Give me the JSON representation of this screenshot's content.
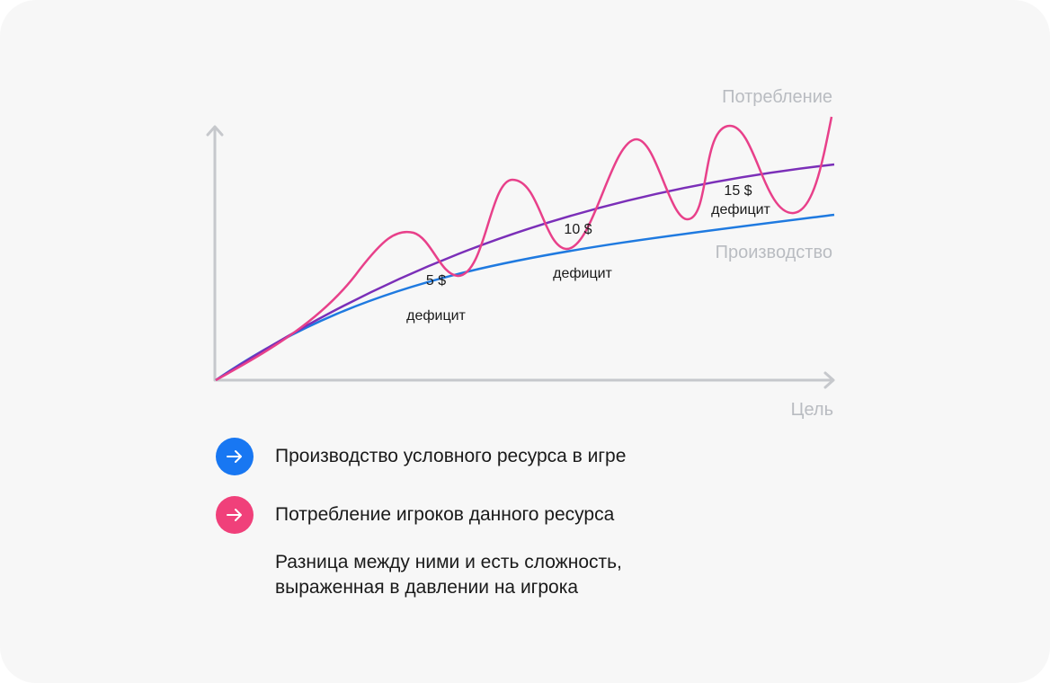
{
  "diagram": {
    "consumption_label": "Потребление",
    "production_label": "Производство",
    "x_axis_label": "Цель",
    "deficits": [
      {
        "amount": "5 $",
        "label": "дефицит"
      },
      {
        "amount": "10 $",
        "label": "дефицит"
      },
      {
        "amount": "15 $",
        "label": "дефицит"
      }
    ]
  },
  "legend": {
    "production": {
      "text": "Производство условного ресурса в игре",
      "icon": "arrow-right-icon",
      "color": "#1877f2"
    },
    "consumption": {
      "text": "Потребление игроков данного ресурса",
      "icon": "arrow-right-icon",
      "color": "#f0407a"
    }
  },
  "note": {
    "line1": "Разница между ними и есть сложность,",
    "line2": "выраженная в давлении на игрока"
  },
  "colors": {
    "production_curve": "#1f7ae0",
    "consumption_curve": "#e8408a",
    "average_curve": "#7b2fb8",
    "axes": "#c6c8cc"
  }
}
